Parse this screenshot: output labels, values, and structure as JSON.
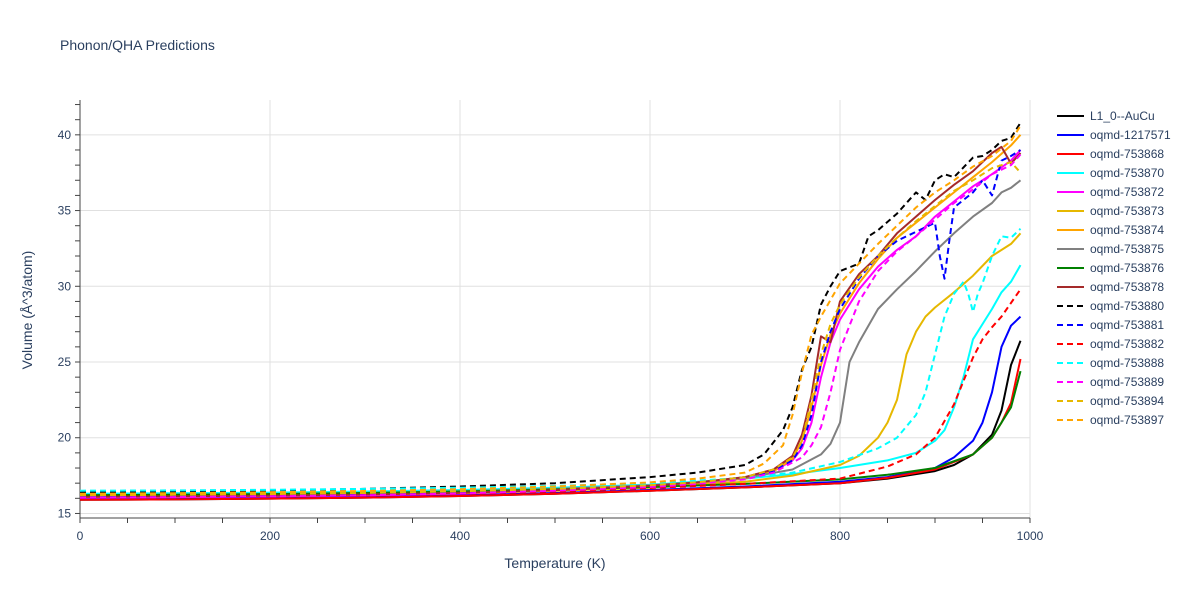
{
  "chart_data": {
    "type": "line",
    "title": "Phonon/QHA Predictions",
    "xlabel": "Temperature (K)",
    "ylabel": "Volume (Å^3/atom)",
    "xlim": [
      0,
      1000
    ],
    "ylim": [
      14.7,
      42.3
    ],
    "xticks": [
      0,
      200,
      400,
      600,
      800,
      1000
    ],
    "yticks": [
      15,
      20,
      25,
      30,
      35,
      40
    ],
    "grid": true,
    "legend_position": "right",
    "series": [
      {
        "name": "L1_0--AuCu",
        "color": "#000000",
        "dash": "solid",
        "x": [
          0,
          100,
          200,
          300,
          400,
          500,
          600,
          700,
          800,
          850,
          900,
          920,
          940,
          960,
          970,
          980,
          990
        ],
        "y": [
          15.9,
          15.93,
          15.98,
          16.05,
          16.15,
          16.3,
          16.5,
          16.72,
          17.0,
          17.3,
          17.8,
          18.2,
          18.9,
          20.2,
          21.8,
          24.8,
          26.4
        ]
      },
      {
        "name": "oqmd-1217571",
        "color": "#0000ff",
        "dash": "solid",
        "x": [
          0,
          100,
          200,
          300,
          400,
          500,
          600,
          700,
          800,
          850,
          900,
          920,
          940,
          950,
          960,
          970,
          980,
          990
        ],
        "y": [
          15.95,
          15.98,
          16.03,
          16.1,
          16.2,
          16.35,
          16.55,
          16.78,
          17.1,
          17.4,
          18.0,
          18.7,
          19.8,
          21.0,
          23.0,
          26.0,
          27.4,
          28.0
        ]
      },
      {
        "name": "oqmd-753868",
        "color": "#ff0000",
        "dash": "solid",
        "x": [
          0,
          100,
          200,
          300,
          400,
          500,
          600,
          700,
          800,
          850,
          900,
          940,
          960,
          970,
          980,
          990
        ],
        "y": [
          15.9,
          15.93,
          15.98,
          16.05,
          16.15,
          16.3,
          16.5,
          16.72,
          17.0,
          17.35,
          17.9,
          18.9,
          20.0,
          21.0,
          22.3,
          25.2
        ]
      },
      {
        "name": "oqmd-753870",
        "color": "#00ffff",
        "dash": "solid",
        "x": [
          0,
          100,
          200,
          300,
          400,
          500,
          600,
          700,
          750,
          800,
          850,
          880,
          900,
          910,
          920,
          930,
          940,
          950,
          960,
          970,
          980,
          990
        ],
        "y": [
          16.3,
          16.33,
          16.38,
          16.45,
          16.55,
          16.7,
          16.9,
          17.3,
          17.6,
          18.0,
          18.5,
          19.0,
          19.8,
          20.5,
          22.0,
          24.0,
          26.5,
          27.5,
          28.5,
          29.6,
          30.3,
          31.4
        ]
      },
      {
        "name": "oqmd-753872",
        "color": "#ff00ff",
        "dash": "solid",
        "x": [
          0,
          100,
          200,
          300,
          400,
          500,
          600,
          650,
          700,
          730,
          750,
          760,
          770,
          780,
          790,
          800,
          820,
          840,
          860,
          880,
          900,
          920,
          940,
          960,
          980,
          990
        ],
        "y": [
          16.05,
          16.08,
          16.13,
          16.2,
          16.32,
          16.5,
          16.75,
          16.95,
          17.3,
          17.8,
          18.5,
          19.3,
          21.0,
          24.0,
          26.3,
          27.8,
          29.8,
          31.3,
          32.4,
          33.3,
          34.6,
          35.6,
          36.6,
          37.4,
          38.3,
          39.0
        ]
      },
      {
        "name": "oqmd-753873",
        "color": "#e6b800",
        "dash": "solid",
        "x": [
          0,
          100,
          200,
          300,
          400,
          500,
          600,
          700,
          750,
          800,
          820,
          840,
          850,
          860,
          870,
          880,
          890,
          900,
          920,
          940,
          960,
          980,
          990
        ],
        "y": [
          16.1,
          16.13,
          16.18,
          16.25,
          16.35,
          16.5,
          16.7,
          17.1,
          17.5,
          18.2,
          18.8,
          20.0,
          21.0,
          22.5,
          25.5,
          27.0,
          28.0,
          28.6,
          29.6,
          30.7,
          32.0,
          32.8,
          33.5
        ]
      },
      {
        "name": "oqmd-753874",
        "color": "#ffa500",
        "dash": "solid",
        "x": [
          0,
          100,
          200,
          300,
          400,
          500,
          600,
          650,
          700,
          730,
          750,
          760,
          770,
          780,
          790,
          800,
          820,
          840,
          860,
          880,
          900,
          920,
          940,
          960,
          980,
          990
        ],
        "y": [
          16.1,
          16.13,
          16.18,
          16.25,
          16.36,
          16.52,
          16.78,
          16.98,
          17.3,
          17.8,
          18.6,
          19.8,
          22.0,
          24.8,
          26.8,
          28.2,
          30.2,
          31.8,
          33.2,
          34.2,
          35.2,
          36.2,
          37.2,
          38.2,
          39.3,
          40.0
        ]
      },
      {
        "name": "oqmd-753875",
        "color": "#808080",
        "dash": "solid",
        "x": [
          0,
          100,
          200,
          300,
          400,
          500,
          600,
          650,
          700,
          750,
          780,
          790,
          800,
          810,
          820,
          840,
          860,
          880,
          900,
          920,
          940,
          960,
          970,
          980,
          990
        ],
        "y": [
          16.2,
          16.23,
          16.28,
          16.35,
          16.46,
          16.62,
          16.86,
          17.05,
          17.35,
          17.9,
          18.9,
          19.6,
          21.0,
          25.0,
          26.3,
          28.5,
          29.8,
          31.0,
          32.3,
          33.5,
          34.6,
          35.5,
          36.2,
          36.5,
          37.0
        ]
      },
      {
        "name": "oqmd-753876",
        "color": "#008000",
        "dash": "solid",
        "x": [
          0,
          100,
          200,
          300,
          400,
          500,
          600,
          700,
          800,
          850,
          900,
          940,
          960,
          980,
          990
        ],
        "y": [
          16.2,
          16.23,
          16.28,
          16.35,
          16.45,
          16.58,
          16.75,
          16.95,
          17.25,
          17.55,
          18.0,
          18.9,
          20.0,
          22.0,
          24.4
        ]
      },
      {
        "name": "oqmd-753878",
        "color": "#a52a2a",
        "dash": "solid",
        "x": [
          0,
          100,
          200,
          300,
          400,
          500,
          600,
          650,
          700,
          730,
          750,
          760,
          770,
          780,
          790,
          800,
          820,
          840,
          860,
          880,
          900,
          920,
          940,
          960,
          970,
          980,
          990
        ],
        "y": [
          16.1,
          16.13,
          16.18,
          16.25,
          16.37,
          16.54,
          16.82,
          17.05,
          17.4,
          17.9,
          18.8,
          20.2,
          22.8,
          26.7,
          26.3,
          29.0,
          30.8,
          32.0,
          33.5,
          34.6,
          35.7,
          36.7,
          37.6,
          38.8,
          39.2,
          38.1,
          38.8
        ]
      },
      {
        "name": "oqmd-753880",
        "color": "#000000",
        "dash": "dash",
        "x": [
          0,
          100,
          200,
          300,
          400,
          500,
          600,
          650,
          700,
          720,
          740,
          750,
          760,
          770,
          780,
          790,
          800,
          820,
          830,
          840,
          860,
          880,
          890,
          900,
          910,
          920,
          940,
          950,
          960,
          970,
          980,
          990
        ],
        "y": [
          16.4,
          16.45,
          16.52,
          16.62,
          16.78,
          17.0,
          17.4,
          17.7,
          18.2,
          18.9,
          20.5,
          22.0,
          24.5,
          26.0,
          28.8,
          30.0,
          31.0,
          31.5,
          33.3,
          33.7,
          34.8,
          36.2,
          35.7,
          37.0,
          37.4,
          37.2,
          38.5,
          38.6,
          39.0,
          39.6,
          39.8,
          40.8
        ]
      },
      {
        "name": "oqmd-753881",
        "color": "#0000ff",
        "dash": "dash",
        "x": [
          0,
          100,
          200,
          300,
          400,
          500,
          600,
          650,
          700,
          730,
          750,
          760,
          770,
          780,
          790,
          800,
          820,
          840,
          860,
          880,
          900,
          905,
          910,
          915,
          920,
          940,
          950,
          960,
          970,
          980,
          990
        ],
        "y": [
          16.1,
          16.13,
          16.18,
          16.25,
          16.37,
          16.54,
          16.82,
          17.05,
          17.4,
          17.8,
          18.5,
          19.5,
          21.5,
          25.0,
          27.0,
          28.5,
          30.5,
          32.0,
          33.0,
          33.6,
          34.2,
          32.0,
          30.5,
          33.0,
          35.2,
          36.2,
          37.0,
          36.0,
          38.3,
          38.6,
          39.0
        ]
      },
      {
        "name": "oqmd-753882",
        "color": "#ff0000",
        "dash": "dash",
        "x": [
          0,
          100,
          200,
          300,
          400,
          500,
          600,
          700,
          800,
          850,
          880,
          900,
          920,
          940,
          950,
          960,
          970,
          980,
          990
        ],
        "y": [
          16.05,
          16.08,
          16.13,
          16.2,
          16.3,
          16.45,
          16.68,
          16.95,
          17.3,
          18.1,
          18.9,
          20.0,
          22.2,
          25.3,
          26.5,
          27.3,
          28.0,
          28.9,
          29.8
        ]
      },
      {
        "name": "oqmd-753888",
        "color": "#00ffff",
        "dash": "dash",
        "x": [
          0,
          100,
          200,
          300,
          400,
          500,
          600,
          700,
          750,
          800,
          840,
          860,
          880,
          890,
          900,
          910,
          920,
          930,
          935,
          940,
          945,
          950,
          960,
          970,
          980,
          990
        ],
        "y": [
          16.5,
          16.52,
          16.56,
          16.62,
          16.7,
          16.82,
          17.0,
          17.35,
          17.7,
          18.4,
          19.3,
          20.0,
          21.5,
          23.0,
          25.5,
          28.0,
          29.5,
          30.3,
          29.5,
          28.3,
          29.5,
          30.2,
          32.0,
          33.3,
          33.2,
          33.8
        ]
      },
      {
        "name": "oqmd-753889",
        "color": "#ff00ff",
        "dash": "dash",
        "x": [
          0,
          100,
          200,
          300,
          400,
          500,
          600,
          650,
          700,
          730,
          760,
          770,
          780,
          790,
          800,
          820,
          840,
          860,
          880,
          900,
          920,
          940,
          960,
          980,
          990
        ],
        "y": [
          16.05,
          16.08,
          16.13,
          16.2,
          16.32,
          16.5,
          16.75,
          16.95,
          17.25,
          17.7,
          18.7,
          19.5,
          20.7,
          23.0,
          25.8,
          29.0,
          31.0,
          32.3,
          33.3,
          34.4,
          35.5,
          36.4,
          37.4,
          38.0,
          38.7
        ]
      },
      {
        "name": "oqmd-753894",
        "color": "#e6b800",
        "dash": "dash",
        "x": [
          0,
          100,
          200,
          300,
          400,
          500,
          600,
          650,
          700,
          730,
          750,
          760,
          770,
          780,
          790,
          800,
          820,
          840,
          860,
          880,
          900,
          920,
          940,
          960,
          980,
          990
        ],
        "y": [
          16.2,
          16.23,
          16.28,
          16.35,
          16.46,
          16.62,
          16.86,
          17.06,
          17.4,
          17.9,
          18.7,
          19.8,
          22.5,
          25.5,
          27.5,
          28.8,
          30.6,
          32.0,
          33.2,
          34.3,
          35.3,
          36.3,
          37.0,
          37.8,
          38.2,
          37.5
        ]
      },
      {
        "name": "oqmd-753897",
        "color": "#ffa500",
        "dash": "dash",
        "x": [
          0,
          100,
          200,
          300,
          400,
          500,
          600,
          650,
          700,
          720,
          740,
          750,
          760,
          770,
          780,
          800,
          820,
          840,
          860,
          880,
          900,
          920,
          940,
          960,
          980,
          990
        ],
        "y": [
          16.3,
          16.34,
          16.4,
          16.48,
          16.6,
          16.78,
          17.05,
          17.3,
          17.7,
          18.3,
          19.5,
          21.5,
          24.3,
          26.8,
          28.0,
          30.2,
          31.5,
          32.8,
          34.0,
          35.2,
          36.2,
          37.0,
          37.9,
          38.6,
          39.6,
          40.6
        ]
      }
    ]
  }
}
